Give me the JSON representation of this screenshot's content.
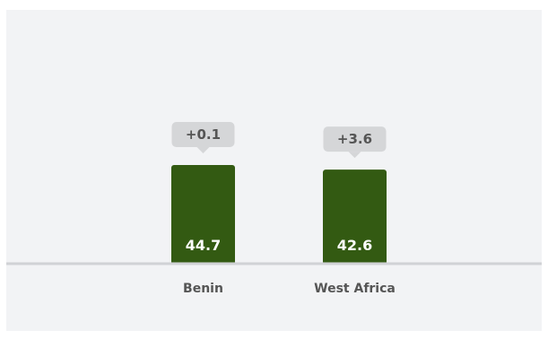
{
  "chart_data": {
    "type": "bar",
    "categories": [
      "Benin",
      "West Africa"
    ],
    "values": [
      44.7,
      42.6
    ],
    "value_labels": [
      "44.7",
      "42.6"
    ],
    "change_labels": [
      "+0.1",
      "+3.6"
    ],
    "title": "",
    "xlabel": "",
    "ylabel": "",
    "ylim": [
      0,
      44.7
    ],
    "grid": false,
    "legend": "none"
  },
  "colors": {
    "bar": "#335a12",
    "baseline": "#d0d2d5",
    "callout_bg": "#d5d6d8",
    "panel_bg": "#f2f3f5",
    "value_text": "#ffffff",
    "callout_text": "#555555",
    "category_text": "#555555"
  }
}
